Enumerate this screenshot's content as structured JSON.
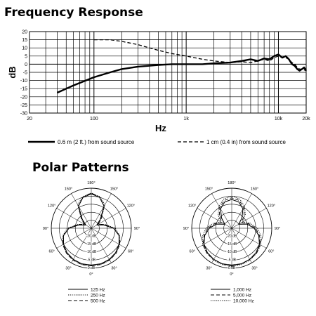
{
  "titles": {
    "frequency_response": "Frequency Response",
    "polar_patterns": "Polar Patterns"
  },
  "chart_data": [
    {
      "type": "line",
      "title": "Frequency Response",
      "xlabel": "Hz",
      "ylabel": "dB",
      "xscale": "log",
      "xlim": [
        20,
        20000
      ],
      "ylim": [
        -30,
        20
      ],
      "xticks": [
        {
          "value": 20,
          "label": "20"
        },
        {
          "value": 100,
          "label": "100"
        },
        {
          "value": 1000,
          "label": "1k"
        },
        {
          "value": 10000,
          "label": "10k"
        },
        {
          "value": 20000,
          "label": "20k"
        }
      ],
      "yticks": [
        20,
        15,
        10,
        5,
        0,
        -5,
        -10,
        -15,
        -20,
        -25,
        -30
      ],
      "grid": true,
      "legend_position": "bottom",
      "series": [
        {
          "name": "0.6 m (2 ft.) from sound source",
          "style": "solid",
          "points": [
            [
              40,
              -17.5
            ],
            [
              60,
              -13
            ],
            [
              100,
              -8
            ],
            [
              150,
              -5
            ],
            [
              200,
              -3
            ],
            [
              300,
              -1.5
            ],
            [
              500,
              -0.5
            ],
            [
              700,
              0
            ],
            [
              1000,
              0
            ],
            [
              1500,
              0
            ],
            [
              2000,
              0.5
            ],
            [
              3000,
              1
            ],
            [
              4000,
              2
            ],
            [
              5000,
              3
            ],
            [
              6000,
              2
            ],
            [
              7000,
              3.5
            ],
            [
              8000,
              3
            ],
            [
              9000,
              5
            ],
            [
              10000,
              6
            ],
            [
              11000,
              4
            ],
            [
              12000,
              5
            ],
            [
              13000,
              3
            ],
            [
              14000,
              0
            ],
            [
              15000,
              -1
            ],
            [
              16000,
              -3
            ],
            [
              17000,
              -4
            ],
            [
              18000,
              -3
            ],
            [
              19000,
              -2
            ],
            [
              20000,
              -4
            ]
          ]
        },
        {
          "name": "1 cm (0.4 in) from sound source",
          "style": "dashed",
          "points": [
            [
              100,
              15
            ],
            [
              150,
              15
            ],
            [
              200,
              14
            ],
            [
              300,
              12
            ],
            [
              400,
              10
            ],
            [
              500,
              8.5
            ],
            [
              700,
              6.5
            ],
            [
              1000,
              5
            ],
            [
              1500,
              3
            ],
            [
              2000,
              2
            ],
            [
              3000,
              1
            ],
            [
              4000,
              1.5
            ],
            [
              5000,
              1
            ],
            [
              6000,
              2
            ],
            [
              7000,
              3
            ],
            [
              8000,
              2
            ],
            [
              9000,
              4
            ],
            [
              10000,
              5
            ],
            [
              11000,
              4
            ],
            [
              12000,
              4
            ],
            [
              13000,
              3
            ],
            [
              14000,
              1
            ],
            [
              15000,
              0
            ],
            [
              16000,
              -2
            ],
            [
              17000,
              -3
            ],
            [
              18000,
              -3
            ],
            [
              20000,
              -4
            ]
          ]
        }
      ]
    },
    {
      "type": "polar",
      "angle_labels": [
        "180°",
        "150°",
        "120°",
        "90°",
        "60°",
        "30°",
        "0°",
        "30°",
        "60°",
        "90°",
        "120°",
        "150°"
      ],
      "radial_labels": [
        "-20 dB",
        "-15 dB",
        "-10 dB",
        "-5 dB",
        "0 dB"
      ],
      "rlim": [
        -25,
        0
      ],
      "series": [
        {
          "name": "125 Hz",
          "style": "solid",
          "db": [
            -2,
            -2,
            -2.5,
            -3.5,
            -5,
            -7,
            -11,
            -17,
            -21,
            -17,
            -9,
            -5,
            -3.5
          ]
        },
        {
          "name": "250 Hz",
          "style": "dotted",
          "db": [
            -1.5,
            -1.5,
            -2,
            -3,
            -4.5,
            -6.5,
            -10,
            -16,
            -20,
            -16,
            -8,
            -4.5,
            -3
          ]
        },
        {
          "name": "500 Hz",
          "style": "dashed",
          "db": [
            -1.5,
            -1.5,
            -2,
            -3,
            -4.5,
            -7,
            -11,
            -16,
            -20,
            -16,
            -9,
            -5,
            -3
          ]
        }
      ]
    },
    {
      "type": "polar",
      "angle_labels": [
        "180°",
        "150°",
        "120°",
        "90°",
        "60°",
        "30°",
        "0°",
        "30°",
        "60°",
        "90°",
        "120°",
        "150°"
      ],
      "radial_labels": [
        "-20 dB",
        "-15 dB",
        "-10 dB",
        "-5 dB",
        "0 dB"
      ],
      "rlim": [
        -25,
        0
      ],
      "series": [
        {
          "name": "1,000 Hz",
          "style": "solid",
          "db": [
            -2,
            -2,
            -2.5,
            -3.5,
            -5,
            -7.5,
            -11,
            -15,
            -20,
            -16,
            -11,
            -8,
            -7
          ]
        },
        {
          "name": "5,000 Hz",
          "style": "dashed",
          "db": [
            -1.5,
            -2,
            -2.5,
            -3,
            -4.5,
            -7,
            -10,
            -14,
            -18,
            -14,
            -10,
            -7,
            -6
          ]
        },
        {
          "name": "10,000 Hz",
          "style": "dotted",
          "db": [
            -1,
            -1.5,
            -2,
            -3,
            -4,
            -6,
            -9,
            -13,
            -17,
            -13,
            -9,
            -6,
            -5
          ]
        }
      ]
    }
  ]
}
